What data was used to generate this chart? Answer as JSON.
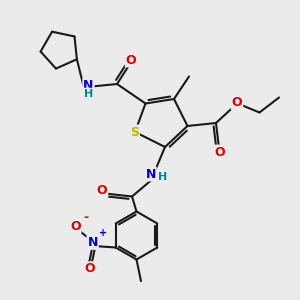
{
  "background_color": "#ebebeb",
  "bond_color": "#1a1a1a",
  "bond_width": 1.5,
  "atom_colors": {
    "O": "#dd0000",
    "N": "#0000cc",
    "S": "#b8b800",
    "H": "#008888",
    "default": "#1a1a1a"
  },
  "figsize": [
    3.0,
    3.0
  ],
  "dpi": 100,
  "xlim": [
    0,
    10
  ],
  "ylim": [
    0,
    10
  ]
}
